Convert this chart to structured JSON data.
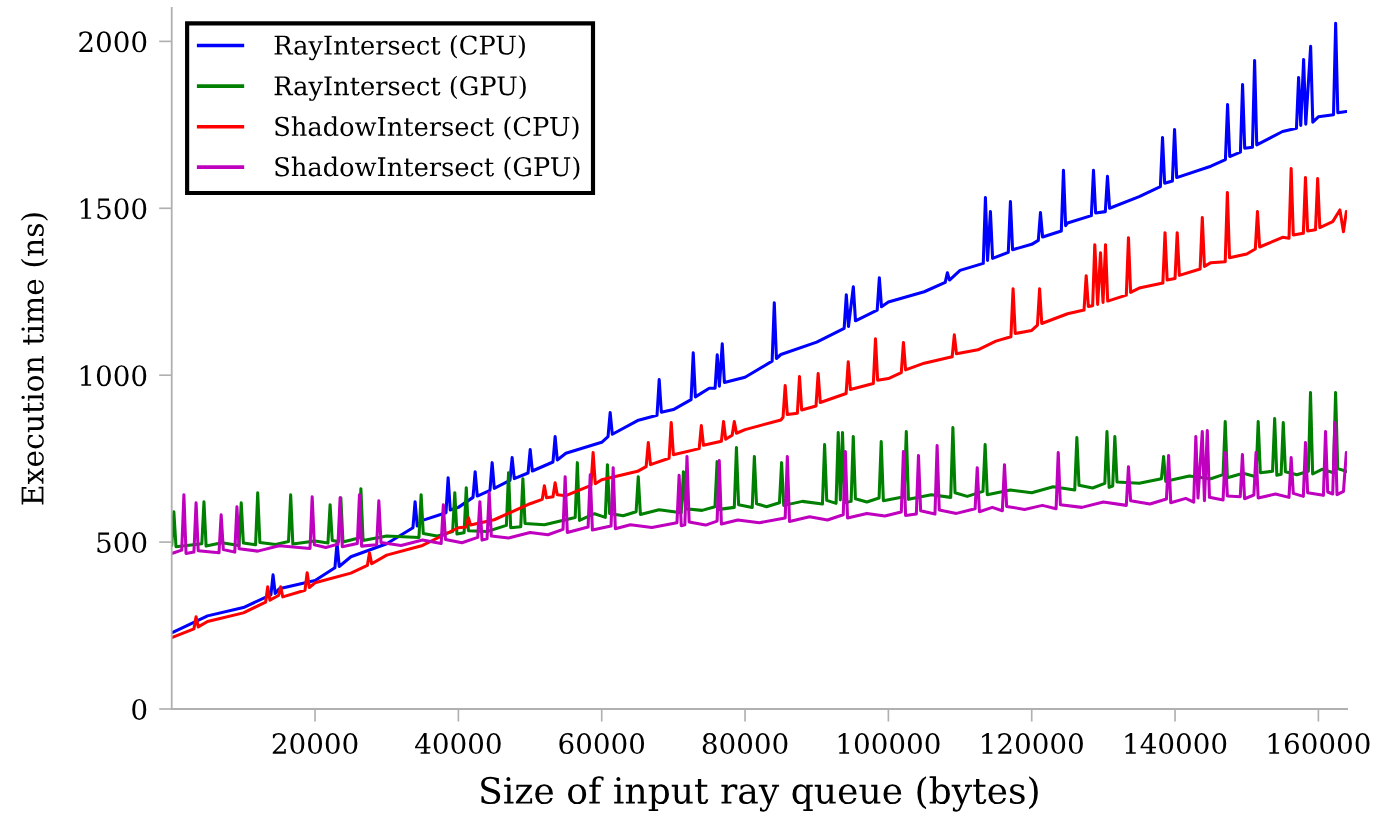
{
  "chart_data": {
    "type": "line",
    "xlabel": "Size of input ray queue (bytes)",
    "ylabel": "Execution time (ns)",
    "xlim": [
      0,
      164000
    ],
    "ylim": [
      0,
      2100
    ],
    "xticks": [
      20000,
      40000,
      60000,
      80000,
      100000,
      120000,
      140000,
      160000
    ],
    "yticks": [
      0,
      500,
      1000,
      1500,
      2000
    ],
    "legend": "top left",
    "series": [
      {
        "name": "RayIntersect (CPU)",
        "color": "#0000ff",
        "x": [
          0,
          5000,
          10000,
          13840,
          14140,
          14440,
          15000,
          20000,
          22770,
          23070,
          23370,
          25000,
          30000,
          33660,
          33960,
          34260,
          35000,
          38270,
          38570,
          38870,
          40000,
          42040,
          42340,
          42640,
          44410,
          44710,
          45010,
          47200,
          47500,
          47800,
          49720,
          50020,
          50320,
          53200,
          53500,
          53800,
          55000,
          60000,
          60880,
          61180,
          61480,
          65000,
          67720,
          68020,
          68320,
          70000,
          72470,
          72770,
          73070,
          75000,
          75820,
          76120,
          76420,
          76820,
          77120,
          80000,
          83780,
          84080,
          84380,
          85000,
          90000,
          93830,
          94130,
          94430,
          95110,
          95410,
          98440,
          98740,
          99040,
          100000,
          105000,
          107930,
          108230,
          108530,
          110000,
          113240,
          113540,
          113840,
          114240,
          114540,
          116730,
          117030,
          117330,
          120000,
          120920,
          121220,
          121520,
          124130,
          124430,
          124730,
          125000,
          128320,
          128620,
          128920,
          130270,
          130570,
          130870,
          135000,
          137950,
          138250,
          138550,
          139630,
          139930,
          140230,
          145000,
          147030,
          147330,
          147630,
          149120,
          149420,
          149720,
          150800,
          151100,
          151400,
          155000,
          156940,
          157240,
          157540,
          157940,
          158240,
          158920,
          159220,
          160000,
          162110,
          162410,
          162710,
          163900
        ],
        "values": [
          228,
          279,
          304,
          342,
          402,
          346,
          360,
          385,
          423,
          498,
          427,
          456,
          495,
          543,
          621,
          548,
          565,
          588,
          693,
          596,
          604,
          634,
          711,
          638,
          655,
          738,
          661,
          685,
          753,
          690,
          707,
          777,
          713,
          740,
          816,
          746,
          766,
          799,
          816,
          888,
          823,
          864,
          880,
          987,
          889,
          897,
          927,
          1067,
          935,
          961,
          961,
          1061,
          967,
          1094,
          978,
          994,
          1042,
          1217,
          1050,
          1062,
          1099,
          1140,
          1241,
          1146,
          1265,
          1163,
          1195,
          1292,
          1205,
          1219,
          1250,
          1278,
          1307,
          1285,
          1314,
          1335,
          1532,
          1344,
          1490,
          1350,
          1368,
          1520,
          1376,
          1392,
          1404,
          1487,
          1414,
          1432,
          1614,
          1448,
          1456,
          1478,
          1614,
          1486,
          1490,
          1596,
          1500,
          1535,
          1565,
          1712,
          1575,
          1582,
          1736,
          1592,
          1626,
          1646,
          1811,
          1655,
          1668,
          1871,
          1680,
          1683,
          1943,
          1690,
          1730,
          1740,
          1892,
          1748,
          1946,
          1752,
          1985,
          1758,
          1774,
          1780,
          2054,
          1786,
          1790
        ]
      },
      {
        "name": "RayIntersect (GPU)",
        "color": "#008000",
        "x": [
          0,
          300,
          600,
          4200,
          4500,
          4800,
          7000,
          9400,
          9700,
          10000,
          11700,
          12000,
          12300,
          14500,
          16300,
          16600,
          16900,
          20000,
          21800,
          22100,
          22400,
          23300,
          23600,
          23900,
          26100,
          26400,
          26700,
          30000,
          34500,
          34800,
          35100,
          37000,
          39200,
          39500,
          39800,
          40800,
          41100,
          41400,
          44000,
          46700,
          47000,
          47300,
          48700,
          49000,
          49300,
          52000,
          56300,
          56600,
          56900,
          59000,
          60500,
          60800,
          61100,
          63000,
          64800,
          65100,
          65400,
          68000,
          71100,
          71400,
          71700,
          74000,
          75800,
          76100,
          76400,
          78500,
          78800,
          79100,
          81000,
          81300,
          81600,
          83000,
          84800,
          85100,
          85400,
          88000,
          90800,
          91100,
          91400,
          92700,
          93000,
          93300,
          93600,
          93900,
          94800,
          95100,
          95400,
          97000,
          98700,
          99000,
          99300,
          102200,
          102500,
          102800,
          106000,
          108700,
          109000,
          109300,
          111000,
          113200,
          113500,
          113800,
          117000,
          120000,
          123000,
          126000,
          126300,
          126600,
          128500,
          130200,
          130500,
          130800,
          131300,
          131600,
          131900,
          135000,
          138100,
          138400,
          138700,
          142000,
          145000,
          146700,
          147000,
          147300,
          149500,
          151300,
          151600,
          151900,
          153600,
          153900,
          154200,
          154800,
          155100,
          155400,
          157000,
          158600,
          158900,
          159200,
          160500,
          162100,
          162400,
          162700,
          163900
        ],
        "values": [
          490,
          591,
          486,
          495,
          621,
          488,
          498,
          490,
          618,
          497,
          492,
          648,
          499,
          493,
          502,
          642,
          494,
          503,
          497,
          612,
          505,
          502,
          633,
          500,
          512,
          660,
          505,
          518,
          514,
          642,
          526,
          518,
          532,
          648,
          524,
          528,
          663,
          534,
          532,
          550,
          708,
          543,
          546,
          690,
          556,
          552,
          574,
          738,
          565,
          585,
          574,
          732,
          586,
          579,
          591,
          696,
          583,
          597,
          588,
          711,
          600,
          595,
          606,
          741,
          598,
          604,
          783,
          612,
          604,
          756,
          615,
          606,
          618,
          738,
          610,
          622,
          614,
          792,
          625,
          616,
          828,
          626,
          828,
          618,
          622,
          816,
          630,
          620,
          632,
          801,
          624,
          636,
          831,
          628,
          642,
          634,
          843,
          648,
          637,
          652,
          792,
          642,
          656,
          648,
          666,
          656,
          813,
          670,
          662,
          676,
          831,
          664,
          668,
          816,
          680,
          676,
          690,
          756,
          682,
          698,
          690,
          702,
          861,
          693,
          706,
          696,
          861,
          708,
          712,
          870,
          700,
          703,
          858,
          711,
          702,
          712,
          948,
          704,
          718,
          708,
          948,
          720,
          712
        ]
      },
      {
        "name": "ShadowIntersect (CPU)",
        "color": "#ff0000",
        "x": [
          0,
          3100,
          3400,
          3700,
          5000,
          10000,
          13100,
          13400,
          13700,
          14900,
          15200,
          15500,
          18600,
          18900,
          19200,
          20000,
          25000,
          27300,
          27600,
          27900,
          30000,
          35000,
          40000,
          41100,
          41400,
          41700,
          45000,
          50000,
          51700,
          52000,
          52300,
          53200,
          53500,
          53800,
          55000,
          58500,
          58800,
          59100,
          60000,
          65000,
          66200,
          66500,
          66800,
          69400,
          69700,
          70000,
          73600,
          73900,
          74200,
          76700,
          77000,
          77300,
          78200,
          78500,
          78800,
          80000,
          85000,
          85300,
          85600,
          85900,
          87300,
          87600,
          87900,
          89900,
          90200,
          90500,
          94100,
          94400,
          94700,
          97900,
          98200,
          98500,
          100000,
          101800,
          102100,
          102400,
          105000,
          108900,
          109200,
          109500,
          112500,
          115000,
          117100,
          117400,
          117700,
          120000,
          120800,
          121100,
          121400,
          125000,
          127300,
          127600,
          127900,
          128500,
          128800,
          129200,
          129600,
          129950,
          130300,
          130600,
          133200,
          133500,
          133800,
          135000,
          138300,
          138600,
          138900,
          140000,
          140300,
          140600,
          143500,
          143800,
          144100,
          145000,
          147000,
          147300,
          147600,
          150000,
          151200,
          151500,
          151800,
          155000,
          155900,
          156200,
          156500,
          157900,
          158200,
          158500,
          159600,
          159900,
          160200,
          162000,
          163000,
          163500,
          163900
        ],
        "values": [
          214,
          240,
          276,
          246,
          262,
          288,
          320,
          366,
          326,
          340,
          366,
          336,
          356,
          408,
          364,
          378,
          407,
          430,
          468,
          435,
          461,
          490,
          543,
          545,
          573,
          551,
          567,
          615,
          628,
          669,
          633,
          636,
          678,
          642,
          639,
          670,
          768,
          675,
          687,
          712,
          726,
          798,
          732,
          751,
          858,
          762,
          780,
          849,
          790,
          802,
          861,
          808,
          820,
          861,
          826,
          837,
          866,
          874,
          969,
          882,
          886,
          996,
          896,
          908,
          1005,
          918,
          945,
          1040,
          957,
          975,
          1109,
          985,
          990,
          1008,
          1098,
          1016,
          1036,
          1055,
          1121,
          1064,
          1076,
          1102,
          1115,
          1259,
          1125,
          1134,
          1150,
          1259,
          1155,
          1184,
          1195,
          1298,
          1206,
          1208,
          1391,
          1212,
          1367,
          1218,
          1391,
          1222,
          1240,
          1412,
          1248,
          1261,
          1276,
          1427,
          1285,
          1290,
          1427,
          1299,
          1318,
          1472,
          1326,
          1337,
          1340,
          1547,
          1352,
          1363,
          1378,
          1490,
          1384,
          1413,
          1410,
          1619,
          1420,
          1425,
          1592,
          1432,
          1436,
          1589,
          1442,
          1460,
          1495,
          1430,
          1490
        ]
      },
      {
        "name": "ShadowIntersect (GPU)",
        "color": "#bf00bf",
        "x": [
          0,
          1400,
          1700,
          2000,
          3100,
          3400,
          3700,
          6600,
          6900,
          7200,
          8800,
          9100,
          9400,
          12000,
          15000,
          19300,
          19600,
          19900,
          21500,
          23200,
          23500,
          23800,
          25900,
          26200,
          26500,
          28600,
          28900,
          29200,
          32000,
          35000,
          37600,
          37900,
          38200,
          40500,
          42700,
          43000,
          43300,
          44000,
          44300,
          44600,
          47000,
          50000,
          52500,
          54600,
          54900,
          55200,
          58100,
          58400,
          58700,
          61300,
          61600,
          61900,
          64000,
          67000,
          70500,
          70800,
          71100,
          71600,
          71900,
          72200,
          74500,
          76100,
          76400,
          76700,
          79000,
          82000,
          85600,
          85900,
          86200,
          89000,
          91500,
          93700,
          94000,
          94300,
          97000,
          99500,
          101800,
          102100,
          102400,
          103900,
          104200,
          104500,
          106500,
          106800,
          107100,
          109500,
          112100,
          112400,
          112700,
          114500,
          115900,
          116200,
          116500,
          119000,
          121500,
          123400,
          123700,
          124000,
          127000,
          130000,
          133200,
          133500,
          133800,
          136500,
          138800,
          139100,
          139400,
          141500,
          142600,
          142900,
          143200,
          143800,
          144100,
          144500,
          144800,
          146700,
          147000,
          147300,
          149100,
          149400,
          149700,
          151000,
          151300,
          151600,
          154000,
          155900,
          156200,
          156500,
          157900,
          158200,
          158500,
          160700,
          161000,
          161300,
          162000,
          162300,
          162600,
          163500,
          163900
        ],
        "values": [
          466,
          476,
          642,
          466,
          470,
          618,
          474,
          468,
          582,
          478,
          470,
          606,
          480,
          473,
          489,
          481,
          636,
          492,
          484,
          494,
          633,
          486,
          496,
          642,
          488,
          492,
          624,
          499,
          490,
          506,
          496,
          612,
          508,
          498,
          514,
          621,
          506,
          510,
          648,
          518,
          512,
          529,
          522,
          538,
          696,
          529,
          545,
          702,
          536,
          548,
          723,
          540,
          552,
          544,
          558,
          700,
          549,
          552,
          756,
          560,
          551,
          563,
          744,
          554,
          566,
          558,
          572,
          756,
          562,
          576,
          566,
          582,
          771,
          572,
          586,
          578,
          590,
          771,
          580,
          584,
          759,
          594,
          584,
          789,
          596,
          586,
          600,
          723,
          591,
          604,
          594,
          732,
          607,
          598,
          610,
          600,
          768,
          612,
          604,
          620,
          610,
          726,
          624,
          614,
          629,
          759,
          618,
          631,
          620,
          816,
          632,
          831,
          624,
          834,
          634,
          626,
          768,
          638,
          636,
          762,
          630,
          641,
          768,
          632,
          644,
          634,
          753,
          646,
          637,
          798,
          648,
          640,
          831,
          650,
          644,
          858,
          642,
          652,
          768
        ]
      }
    ]
  }
}
